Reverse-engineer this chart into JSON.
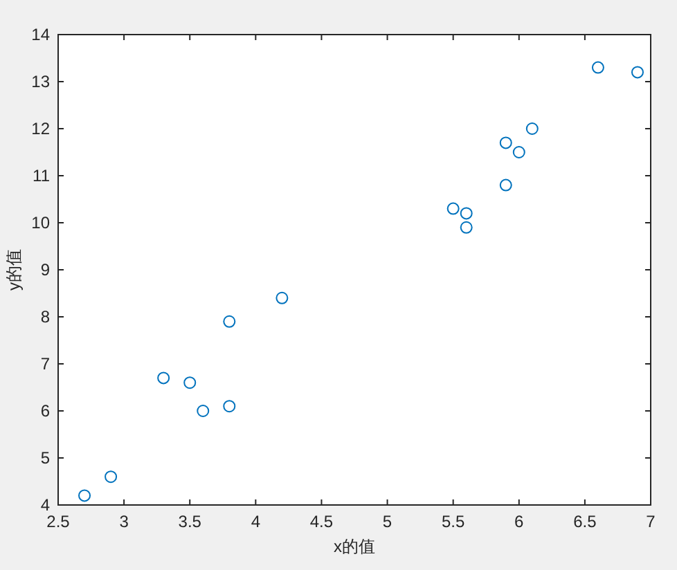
{
  "chart_data": {
    "type": "scatter",
    "xlabel": "x的值",
    "ylabel": "y的值",
    "marker": "circle",
    "x": [
      2.7,
      2.9,
      3.3,
      3.5,
      3.6,
      3.8,
      3.8,
      4.2,
      5.5,
      5.6,
      5.6,
      5.9,
      5.9,
      6.0,
      6.1,
      6.6,
      6.9
    ],
    "series": [
      {
        "color": "#0072bd",
        "values": [
          4.2,
          4.6,
          6.7,
          6.6,
          6.0,
          6.1,
          7.9,
          8.4,
          10.3,
          10.2,
          9.9,
          11.7,
          10.8,
          11.5,
          12.0,
          13.3,
          13.2
        ]
      }
    ],
    "xlim": [
      2.5,
      7
    ],
    "ylim": [
      4,
      14
    ],
    "xticks": [
      2.5,
      3,
      3.5,
      4,
      4.5,
      5,
      5.5,
      6,
      6.5,
      7
    ],
    "yticks": [
      4,
      5,
      6,
      7,
      8,
      9,
      10,
      11,
      12,
      13,
      14
    ]
  }
}
